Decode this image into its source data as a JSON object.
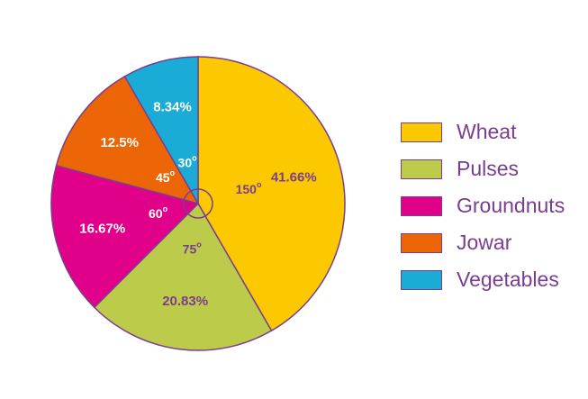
{
  "chart_data": {
    "type": "pie",
    "title": "",
    "start_angle_deg": 0,
    "direction": "clockwise",
    "outline_color": "#7a3d8f",
    "slices": [
      {
        "label": "Wheat",
        "percent": "41.66%",
        "angle": 150,
        "angle_label": "150",
        "color": "#fcc800"
      },
      {
        "label": "Pulses",
        "percent": "20.83%",
        "angle": 75,
        "angle_label": "75",
        "color": "#bccb4a"
      },
      {
        "label": "Groundnuts",
        "percent": "16.67%",
        "angle": 60,
        "angle_label": "60",
        "color": "#e0008a"
      },
      {
        "label": "Jowar",
        "percent": "12.5%",
        "angle": 45,
        "angle_label": "45",
        "color": "#ec6608"
      },
      {
        "label": "Vegetables",
        "percent": "8.34%",
        "angle": 30,
        "angle_label": "30",
        "color": "#1aabd7"
      }
    ],
    "degree_symbol": "o",
    "legend": {
      "position": "right"
    }
  }
}
